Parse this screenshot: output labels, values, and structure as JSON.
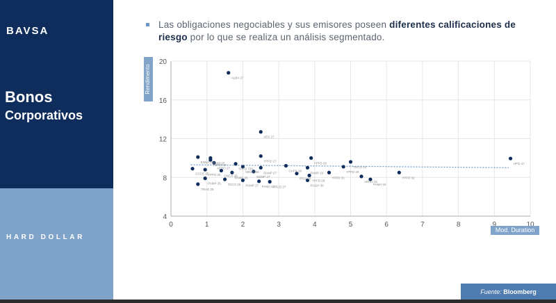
{
  "logo": "BAVSA",
  "sidebar": {
    "title_line1": "Bonos",
    "title_line2": "Corporativos",
    "section": "HARD DOLLAR"
  },
  "description": {
    "pre": "Las obligaciones negociables y sus emisores poseen ",
    "bold": "diferentes calificaciones de riesgo",
    "post": " por lo que se realiza un análisis segmentado."
  },
  "source": {
    "prefix": "Fuente:",
    "name": "Bloomberg"
  },
  "colors": {
    "sidebar_dark": "#0f2d5c",
    "sidebar_light": "#7fa3c9",
    "point": "#0f2d5c",
    "trend": "#6a97c4",
    "grid": "#e6e6e6"
  },
  "chart_data": {
    "type": "scatter",
    "xlabel": "Mod. Duration",
    "ylabel": "Rendimento",
    "xlim": [
      0,
      10
    ],
    "ylim": [
      4,
      20
    ],
    "xticks": [
      0,
      1,
      2,
      3,
      4,
      5,
      6,
      7,
      8,
      9,
      10
    ],
    "yticks": [
      4,
      8,
      12,
      16,
      20
    ],
    "grid": true,
    "trendline": {
      "x": [
        0.55,
        9.4
      ],
      "y": [
        9.3,
        9.0
      ]
    },
    "points": [
      {
        "x": 1.6,
        "y": 18.8,
        "label": "ALBA 27"
      },
      {
        "x": 2.5,
        "y": 12.7,
        "label": "AES 27"
      },
      {
        "x": 9.45,
        "y": 9.95,
        "label": "HPO 47"
      },
      {
        "x": 0.75,
        "y": 10.1,
        "label": "EDNA 25"
      },
      {
        "x": 1.1,
        "y": 10.0,
        "label": "BHIP 25"
      },
      {
        "x": 1.1,
        "y": 9.8,
        "label": "AERO 27"
      },
      {
        "x": 1.2,
        "y": 9.5,
        "label": "AERO 27"
      },
      {
        "x": 1.8,
        "y": 9.4,
        "label": "YPFD 72N"
      },
      {
        "x": 2.5,
        "y": 10.2,
        "label": "YPFD 27"
      },
      {
        "x": 3.9,
        "y": 10.0,
        "label": "YPFD 28"
      },
      {
        "x": 5.0,
        "y": 9.6,
        "label": "TECO 31"
      },
      {
        "x": 0.6,
        "y": 8.9,
        "label": "CGCE 25"
      },
      {
        "x": 0.95,
        "y": 8.8,
        "label": "YPFD 25"
      },
      {
        "x": 1.4,
        "y": 8.7,
        "label": "GNCX 26"
      },
      {
        "x": 1.7,
        "y": 8.5,
        "label": "PAMP 26"
      },
      {
        "x": 2.0,
        "y": 9.1,
        "label": "MRDA 26"
      },
      {
        "x": 2.5,
        "y": 9.0,
        "label": "PAMP 27"
      },
      {
        "x": 3.2,
        "y": 9.2,
        "label": "CAPX 28"
      },
      {
        "x": 3.8,
        "y": 9.0,
        "label": "PAMP 29"
      },
      {
        "x": 4.8,
        "y": 9.1,
        "label": "YPFD 29"
      },
      {
        "x": 2.3,
        "y": 8.6,
        "label": "GEMP 27"
      },
      {
        "x": 3.5,
        "y": 8.4,
        "label": "IRSA 28"
      },
      {
        "x": 3.85,
        "y": 8.2,
        "label": "YPFD 29"
      },
      {
        "x": 4.4,
        "y": 8.5,
        "label": "YPFD 31"
      },
      {
        "x": 5.3,
        "y": 8.1,
        "label": "AERO 31"
      },
      {
        "x": 6.35,
        "y": 8.5,
        "label": "YPFD 32"
      },
      {
        "x": 0.95,
        "y": 7.9,
        "label": "PAMP 25"
      },
      {
        "x": 0.75,
        "y": 7.3,
        "label": "TRAG 25"
      },
      {
        "x": 1.5,
        "y": 7.8,
        "label": "TECO 26"
      },
      {
        "x": 2.0,
        "y": 7.7,
        "label": "PAMP 27"
      },
      {
        "x": 2.45,
        "y": 7.6,
        "label": "PAMA 27"
      },
      {
        "x": 2.75,
        "y": 7.55,
        "label": "ARCO 27"
      },
      {
        "x": 3.8,
        "y": 7.7,
        "label": "RAGH 30"
      },
      {
        "x": 5.55,
        "y": 7.8,
        "label": "PAMA 32"
      }
    ]
  }
}
